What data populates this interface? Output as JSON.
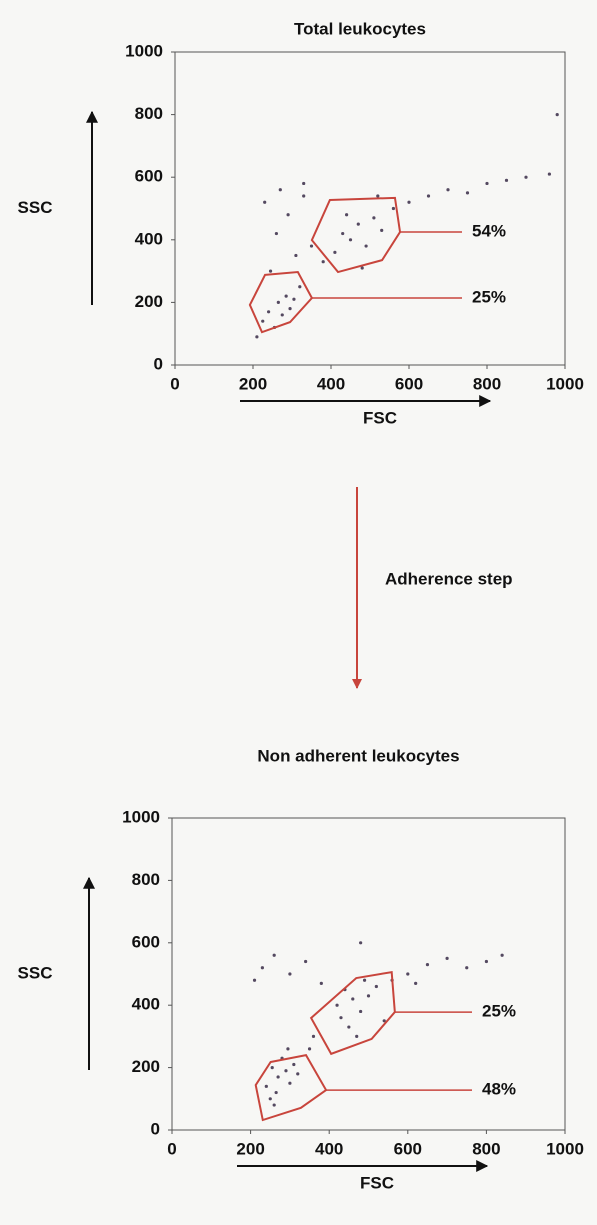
{
  "chart_data": [
    {
      "type": "scatter",
      "title": "Total leukocytes",
      "xlabel": "FSC",
      "ylabel": "SSC",
      "xlim": [
        0,
        1000
      ],
      "ylim": [
        0,
        1000
      ],
      "xticks": [
        0,
        200,
        400,
        600,
        800,
        1000
      ],
      "yticks": [
        0,
        200,
        400,
        600,
        800,
        1000
      ],
      "series": [
        {
          "color": "#2b1d3b",
          "x": [
            210,
            225,
            240,
            255,
            265,
            275,
            285,
            295,
            305,
            320,
            245,
            260,
            290,
            310,
            330,
            350,
            380,
            410,
            430,
            450,
            470,
            490,
            510,
            530,
            560,
            440,
            480,
            520,
            600,
            650,
            700,
            750,
            800,
            850,
            900,
            960,
            230,
            270,
            330,
            980
          ],
          "values": [
            90,
            140,
            170,
            120,
            200,
            160,
            220,
            180,
            210,
            250,
            300,
            420,
            480,
            350,
            540,
            380,
            330,
            360,
            420,
            400,
            450,
            380,
            470,
            430,
            500,
            480,
            310,
            540,
            520,
            540,
            560,
            550,
            580,
            590,
            600,
            610,
            520,
            560,
            580,
            800
          ]
        }
      ],
      "gate_color": "#c8453c",
      "gates": [
        {
          "x": [
            397,
            564,
            577,
            531,
            418,
            351
          ],
          "y": [
            527,
            534,
            425,
            335,
            297,
            399
          ],
          "label": "54%"
        },
        {
          "x": [
            231,
            315,
            351,
            295,
            223,
            192
          ],
          "y": [
            288,
            297,
            214,
            137,
            105,
            192
          ],
          "label": "25%"
        }
      ]
    },
    {
      "type": "scatter",
      "title": "Non adherent leukocytes",
      "xlabel": "FSC",
      "ylabel": "SSC",
      "xlim": [
        0,
        1000
      ],
      "ylim": [
        0,
        1000
      ],
      "xticks": [
        0,
        200,
        400,
        600,
        800,
        1000
      ],
      "yticks": [
        0,
        200,
        400,
        600,
        800,
        1000
      ],
      "series": [
        {
          "color": "#2b1d3b",
          "x": [
            240,
            255,
            270,
            280,
            290,
            300,
            310,
            320,
            265,
            295,
            420,
            440,
            460,
            480,
            500,
            520,
            450,
            470,
            490,
            430,
            210,
            230,
            260,
            300,
            340,
            380,
            560,
            600,
            650,
            700,
            750,
            800,
            840,
            350,
            360,
            540,
            620,
            260,
            250,
            480
          ],
          "values": [
            140,
            200,
            170,
            230,
            190,
            150,
            210,
            180,
            120,
            260,
            400,
            450,
            420,
            380,
            430,
            460,
            330,
            300,
            480,
            360,
            480,
            520,
            560,
            500,
            540,
            470,
            480,
            500,
            530,
            550,
            520,
            540,
            560,
            260,
            300,
            350,
            470,
            80,
            100,
            600
          ]
        }
      ],
      "gate_color": "#c8453c",
      "gates": [
        {
          "x": [
            469,
            559,
            567,
            508,
            405,
            354
          ],
          "y": [
            487,
            506,
            378,
            292,
            244,
            359
          ],
          "label": "25%"
        },
        {
          "x": [
            251,
            341,
            392,
            328,
            231,
            213
          ],
          "y": [
            218,
            240,
            128,
            71,
            32,
            144
          ],
          "label": "48%"
        }
      ]
    }
  ],
  "arrow_label": "Adherence step"
}
